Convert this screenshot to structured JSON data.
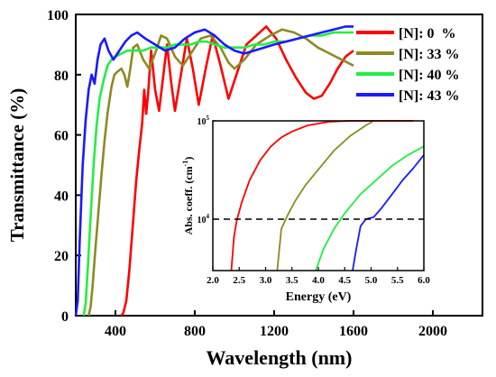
{
  "chart_data": [
    {
      "type": "line",
      "xlabel": "Wavelength (nm)",
      "ylabel": "Transmittance (%)",
      "xlim": [
        200,
        2250
      ],
      "ylim": [
        0,
        100
      ],
      "xticks": [
        400,
        800,
        1200,
        1600,
        2000
      ],
      "yticks": [
        0,
        20,
        40,
        60,
        80,
        100
      ],
      "legend_position": "top-right",
      "series": [
        {
          "name": "[N]: 0  %",
          "color": "#ff0000",
          "points": [
            [
              430,
              0
            ],
            [
              440,
              1
            ],
            [
              455,
              5
            ],
            [
              470,
              15
            ],
            [
              490,
              32
            ],
            [
              505,
              45
            ],
            [
              520,
              55
            ],
            [
              535,
              64
            ],
            [
              545,
              75
            ],
            [
              555,
              67
            ],
            [
              565,
              74
            ],
            [
              580,
              88
            ],
            [
              600,
              75
            ],
            [
              620,
              68
            ],
            [
              640,
              79
            ],
            [
              660,
              90
            ],
            [
              680,
              78
            ],
            [
              700,
              68
            ],
            [
              730,
              80
            ],
            [
              760,
              92
            ],
            [
              790,
              82
            ],
            [
              820,
              70
            ],
            [
              855,
              82
            ],
            [
              890,
              93
            ],
            [
              930,
              83
            ],
            [
              970,
              72
            ],
            [
              1010,
              80
            ],
            [
              1060,
              90
            ],
            [
              1110,
              93
            ],
            [
              1160,
              96
            ],
            [
              1210,
              92
            ],
            [
              1260,
              85
            ],
            [
              1310,
              79
            ],
            [
              1360,
              74
            ],
            [
              1400,
              72
            ],
            [
              1440,
              73
            ],
            [
              1480,
              77
            ],
            [
              1520,
              82
            ],
            [
              1560,
              86
            ],
            [
              1600,
              88
            ]
          ]
        },
        {
          "name": "[N]: 33 %",
          "color": "#8b8b22",
          "points": [
            [
              265,
              0
            ],
            [
              275,
              3
            ],
            [
              285,
              10
            ],
            [
              300,
              23
            ],
            [
              315,
              35
            ],
            [
              330,
              47
            ],
            [
              345,
              58
            ],
            [
              360,
              67
            ],
            [
              380,
              76
            ],
            [
              395,
              80
            ],
            [
              410,
              81
            ],
            [
              430,
              82
            ],
            [
              445,
              80
            ],
            [
              460,
              76
            ],
            [
              475,
              82
            ],
            [
              490,
              89
            ],
            [
              510,
              90
            ],
            [
              540,
              85
            ],
            [
              570,
              82
            ],
            [
              600,
              87
            ],
            [
              630,
              93
            ],
            [
              660,
              92
            ],
            [
              700,
              86
            ],
            [
              740,
              83
            ],
            [
              780,
              87
            ],
            [
              830,
              92
            ],
            [
              880,
              93
            ],
            [
              930,
              89
            ],
            [
              970,
              84
            ],
            [
              1000,
              82
            ],
            [
              1050,
              85
            ],
            [
              1110,
              90
            ],
            [
              1180,
              93
            ],
            [
              1240,
              95
            ],
            [
              1300,
              94
            ],
            [
              1360,
              92
            ],
            [
              1420,
              89
            ],
            [
              1480,
              87
            ],
            [
              1540,
              85
            ],
            [
              1600,
              83
            ]
          ]
        },
        {
          "name": "[N]: 40 %",
          "color": "#22ee44",
          "points": [
            [
              240,
              0
            ],
            [
              250,
              4
            ],
            [
              260,
              15
            ],
            [
              275,
              33
            ],
            [
              290,
              50
            ],
            [
              305,
              63
            ],
            [
              320,
              72
            ],
            [
              340,
              78
            ],
            [
              360,
              83
            ],
            [
              380,
              85
            ],
            [
              400,
              86
            ],
            [
              430,
              87
            ],
            [
              460,
              88
            ],
            [
              500,
              88
            ],
            [
              540,
              88
            ],
            [
              580,
              89
            ],
            [
              620,
              89
            ],
            [
              660,
              89
            ],
            [
              700,
              90
            ],
            [
              740,
              90
            ],
            [
              780,
              90
            ],
            [
              820,
              91
            ],
            [
              860,
              91
            ],
            [
              900,
              90
            ],
            [
              950,
              89
            ],
            [
              1000,
              89
            ],
            [
              1050,
              89
            ],
            [
              1100,
              90
            ],
            [
              1150,
              90
            ],
            [
              1200,
              91
            ],
            [
              1260,
              91
            ],
            [
              1320,
              92
            ],
            [
              1380,
              93
            ],
            [
              1440,
              93
            ],
            [
              1500,
              94
            ],
            [
              1560,
              94
            ],
            [
              1600,
              94
            ]
          ]
        },
        {
          "name": "[N]: 43 %",
          "color": "#1a1aff",
          "points": [
            [
              200,
              0
            ],
            [
              210,
              5
            ],
            [
              220,
              25
            ],
            [
              235,
              50
            ],
            [
              250,
              65
            ],
            [
              265,
              75
            ],
            [
              280,
              80
            ],
            [
              295,
              77
            ],
            [
              310,
              85
            ],
            [
              325,
              90
            ],
            [
              345,
              92
            ],
            [
              365,
              88
            ],
            [
              390,
              85
            ],
            [
              420,
              88
            ],
            [
              450,
              91
            ],
            [
              480,
              93
            ],
            [
              510,
              94
            ],
            [
              550,
              92
            ],
            [
              600,
              90
            ],
            [
              650,
              88
            ],
            [
              700,
              89
            ],
            [
              750,
              92
            ],
            [
              800,
              94
            ],
            [
              850,
              95
            ],
            [
              900,
              93
            ],
            [
              950,
              90
            ],
            [
              1000,
              88
            ],
            [
              1050,
              87
            ],
            [
              1100,
              88
            ],
            [
              1150,
              89
            ],
            [
              1200,
              90
            ],
            [
              1260,
              91
            ],
            [
              1320,
              92
            ],
            [
              1380,
              93
            ],
            [
              1440,
              94
            ],
            [
              1500,
              95
            ],
            [
              1560,
              96
            ],
            [
              1600,
              96
            ]
          ]
        }
      ]
    },
    {
      "type": "line",
      "xlabel": "Energy (eV)",
      "ylabel": "Abs. coeff. (cm",
      "ylabel_sup": "-1",
      "ylabel_close": ")",
      "xlim": [
        2.0,
        6.0
      ],
      "ylim": [
        3000,
        100000
      ],
      "yscale": "log",
      "xticks": [
        "2.0",
        "2.5",
        "3.0",
        "3.5",
        "4.0",
        "4.5",
        "5.0",
        "5.5",
        "6.0"
      ],
      "ytick_labels": [
        {
          "value": 10000,
          "base": "10",
          "exp": "4"
        },
        {
          "value": 100000,
          "base": "10",
          "exp": "5"
        }
      ],
      "reference_line": {
        "y": 10000,
        "style": "dashed",
        "color": "#000000"
      },
      "series": [
        {
          "color": "#ff0000",
          "points": [
            [
              2.35,
              3000
            ],
            [
              2.4,
              6500
            ],
            [
              2.45,
              9500
            ],
            [
              2.55,
              15000
            ],
            [
              2.7,
              25000
            ],
            [
              2.9,
              40000
            ],
            [
              3.1,
              55000
            ],
            [
              3.3,
              68000
            ],
            [
              3.5,
              78000
            ],
            [
              3.8,
              90000
            ],
            [
              4.2,
              98000
            ],
            [
              4.6,
              100000
            ],
            [
              5.0,
              100000
            ],
            [
              5.4,
              100000
            ],
            [
              5.8,
              100000
            ]
          ]
        },
        {
          "color": "#8b8b22",
          "points": [
            [
              3.22,
              3000
            ],
            [
              3.3,
              8000
            ],
            [
              3.4,
              10500
            ],
            [
              3.55,
              15000
            ],
            [
              3.75,
              22000
            ],
            [
              4.0,
              32000
            ],
            [
              4.3,
              50000
            ],
            [
              4.6,
              70000
            ],
            [
              4.9,
              90000
            ],
            [
              5.05,
              100000
            ]
          ]
        },
        {
          "color": "#22ee44",
          "points": [
            [
              3.95,
              3000
            ],
            [
              4.1,
              5000
            ],
            [
              4.3,
              8000
            ],
            [
              4.5,
              11500
            ],
            [
              4.8,
              18000
            ],
            [
              5.1,
              25000
            ],
            [
              5.4,
              35000
            ],
            [
              5.7,
              45000
            ],
            [
              6.0,
              55000
            ]
          ]
        },
        {
          "color": "#1a1aff",
          "points": [
            [
              4.65,
              3000
            ],
            [
              4.72,
              5000
            ],
            [
              4.8,
              8500
            ],
            [
              4.9,
              10000
            ],
            [
              5.05,
              10500
            ],
            [
              5.2,
              13000
            ],
            [
              5.4,
              18000
            ],
            [
              5.6,
              25000
            ],
            [
              5.8,
              33000
            ],
            [
              6.0,
              45000
            ]
          ]
        }
      ]
    }
  ]
}
